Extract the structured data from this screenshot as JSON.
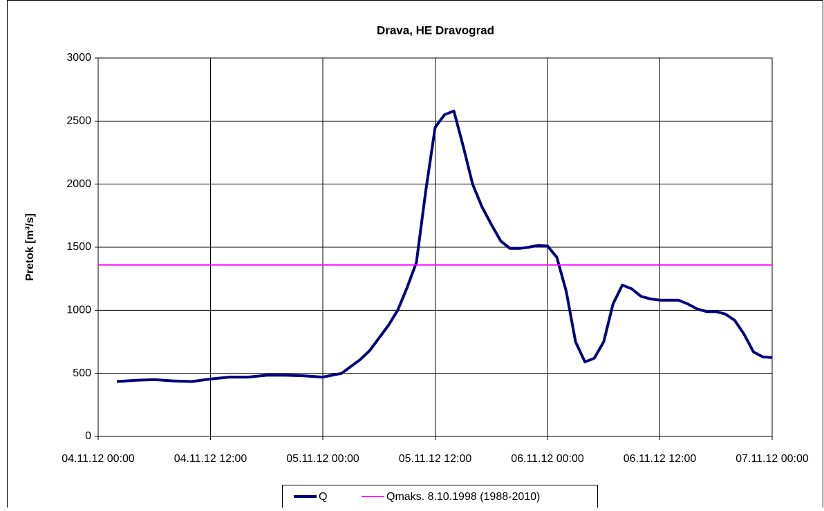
{
  "chart_data": {
    "type": "line",
    "title": "Drava, HE Dravograd",
    "y_label": "Pretok [m³/s]",
    "xlim": [
      "04.11.12 00:00",
      "07.11.12 00:00"
    ],
    "xticks": [
      "04.11.12 00:00",
      "04.11.12 12:00",
      "05.11.12 00:00",
      "05.11.12 12:00",
      "06.11.12 00:00",
      "06.11.12 12:00",
      "07.11.12 00:00"
    ],
    "ylim": [
      0,
      3000
    ],
    "yticks": [
      0,
      500,
      1000,
      1500,
      2000,
      2500,
      3000
    ],
    "grid": true,
    "legend": "bottom",
    "series": [
      {
        "name": "Q",
        "color": "#000080",
        "x": [
          "04.11.12 02:00",
          "04.11.12 04:00",
          "04.11.12 06:00",
          "04.11.12 08:00",
          "04.11.12 10:00",
          "04.11.12 12:00",
          "04.11.12 14:00",
          "04.11.12 16:00",
          "04.11.12 18:00",
          "04.11.12 20:00",
          "04.11.12 22:00",
          "05.11.12 00:00",
          "05.11.12 02:00",
          "05.11.12 04:00",
          "05.11.12 05:00",
          "05.11.12 06:00",
          "05.11.12 07:00",
          "05.11.12 08:00",
          "05.11.12 09:00",
          "05.11.12 10:00",
          "05.11.12 11:00",
          "05.11.12 12:00",
          "05.11.12 13:00",
          "05.11.12 14:00",
          "05.11.12 15:00",
          "05.11.12 16:00",
          "05.11.12 17:00",
          "05.11.12 18:00",
          "05.11.12 19:00",
          "05.11.12 20:00",
          "05.11.12 21:00",
          "05.11.12 22:00",
          "05.11.12 23:00",
          "06.11.12 00:00",
          "06.11.12 01:00",
          "06.11.12 02:00",
          "06.11.12 03:00",
          "06.11.12 04:00",
          "06.11.12 05:00",
          "06.11.12 06:00",
          "06.11.12 07:00",
          "06.11.12 08:00",
          "06.11.12 09:00",
          "06.11.12 10:00",
          "06.11.12 11:00",
          "06.11.12 12:00",
          "06.11.12 13:00",
          "06.11.12 14:00",
          "06.11.12 15:00",
          "06.11.12 16:00",
          "06.11.12 17:00",
          "06.11.12 18:00",
          "06.11.12 19:00",
          "06.11.12 20:00",
          "06.11.12 21:00",
          "06.11.12 22:00",
          "06.11.12 23:00",
          "07.11.12 00:00"
        ],
        "values": [
          435,
          445,
          450,
          440,
          435,
          455,
          470,
          470,
          485,
          485,
          480,
          470,
          500,
          610,
          680,
          780,
          880,
          1000,
          1180,
          1380,
          1950,
          2450,
          2550,
          2580,
          2300,
          2000,
          1820,
          1680,
          1550,
          1490,
          1490,
          1500,
          1515,
          1510,
          1420,
          1150,
          750,
          590,
          620,
          750,
          1050,
          1200,
          1170,
          1110,
          1090,
          1080,
          1080,
          1080,
          1050,
          1010,
          990,
          990,
          970,
          920,
          810,
          670,
          630,
          625
        ]
      },
      {
        "name": "Qmaks. 8.10.1998 (1988-2010)",
        "color": "#ff00ff",
        "x": [
          "04.11.12 00:00",
          "07.11.12 00:00"
        ],
        "values": [
          1360,
          1360
        ]
      }
    ]
  }
}
